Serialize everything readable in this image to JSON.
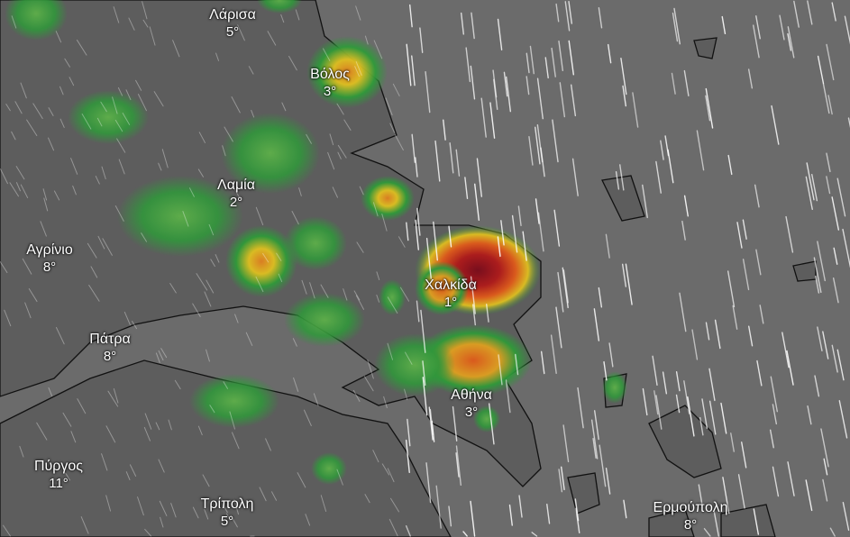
{
  "map": {
    "colors": {
      "sea": "#707070",
      "land": "#5f5f5f",
      "coast": "#111111",
      "rain_light": "#2f9a3a",
      "rain_moderate": "#e0c020",
      "rain_heavy": "#e05a1a",
      "rain_extreme": "#8a0a1a",
      "wind": "#ffffff"
    },
    "cities": [
      {
        "name": "Λάρισα",
        "temp": "5°"
      },
      {
        "name": "Βόλος",
        "temp": "3°"
      },
      {
        "name": "Λαμία",
        "temp": "2°"
      },
      {
        "name": "Αγρίνιο",
        "temp": "8°"
      },
      {
        "name": "Χαλκίδα",
        "temp": "1°"
      },
      {
        "name": "Πάτρα",
        "temp": "8°"
      },
      {
        "name": "Αθήνα",
        "temp": "3°"
      },
      {
        "name": "Πύργος",
        "temp": "11°"
      },
      {
        "name": "Τρίπολη",
        "temp": "5°"
      },
      {
        "name": "Ερμούπολη",
        "temp": "8°"
      }
    ]
  }
}
